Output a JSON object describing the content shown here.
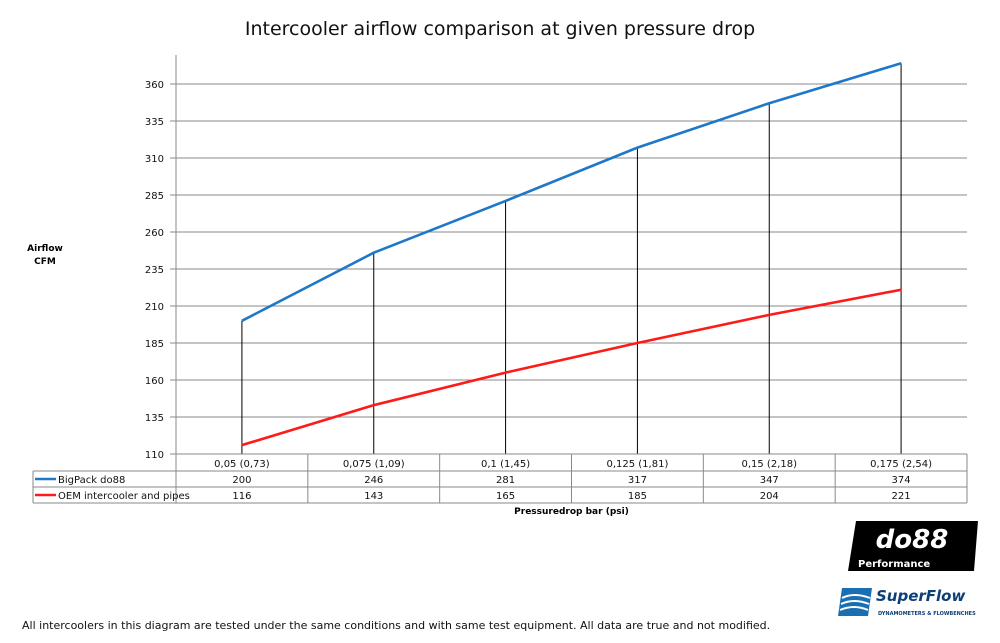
{
  "chart_data": {
    "type": "line",
    "title": "Intercooler airflow comparison at given pressure drop",
    "ylabel": "Airflow\nCFM",
    "ylabel_lines": [
      "Airflow",
      "CFM"
    ],
    "xlabel": "Pressuredrop bar (psi)",
    "categories": [
      "0,05 (0,73)",
      "0,075 (1,09)",
      "0,1 (1,45)",
      "0,125 (1,81)",
      "0,15 (2,18)",
      "0,175 (2,54)"
    ],
    "yticks": [
      110,
      135,
      160,
      185,
      210,
      235,
      260,
      285,
      310,
      335,
      360
    ],
    "ylim": [
      110,
      380
    ],
    "grid": true,
    "legend": "data-table",
    "series": [
      {
        "name": "BigPack do88",
        "color": "#1f77c8",
        "values": [
          200,
          246,
          281,
          317,
          347,
          374
        ]
      },
      {
        "name": "OEM intercooler and pipes",
        "color": "#ff1a1a",
        "values": [
          116,
          143,
          165,
          185,
          204,
          221
        ]
      }
    ]
  },
  "footer": "All intercoolers in this diagram are tested under the same conditions and with same test equipment. All data are true and not modified.",
  "logos": {
    "do88": "do88",
    "do88_sub": "Performance",
    "superflow": "SuperFlow",
    "superflow_sub": "DYNAMOMETERS & FLOWBENCHES"
  }
}
